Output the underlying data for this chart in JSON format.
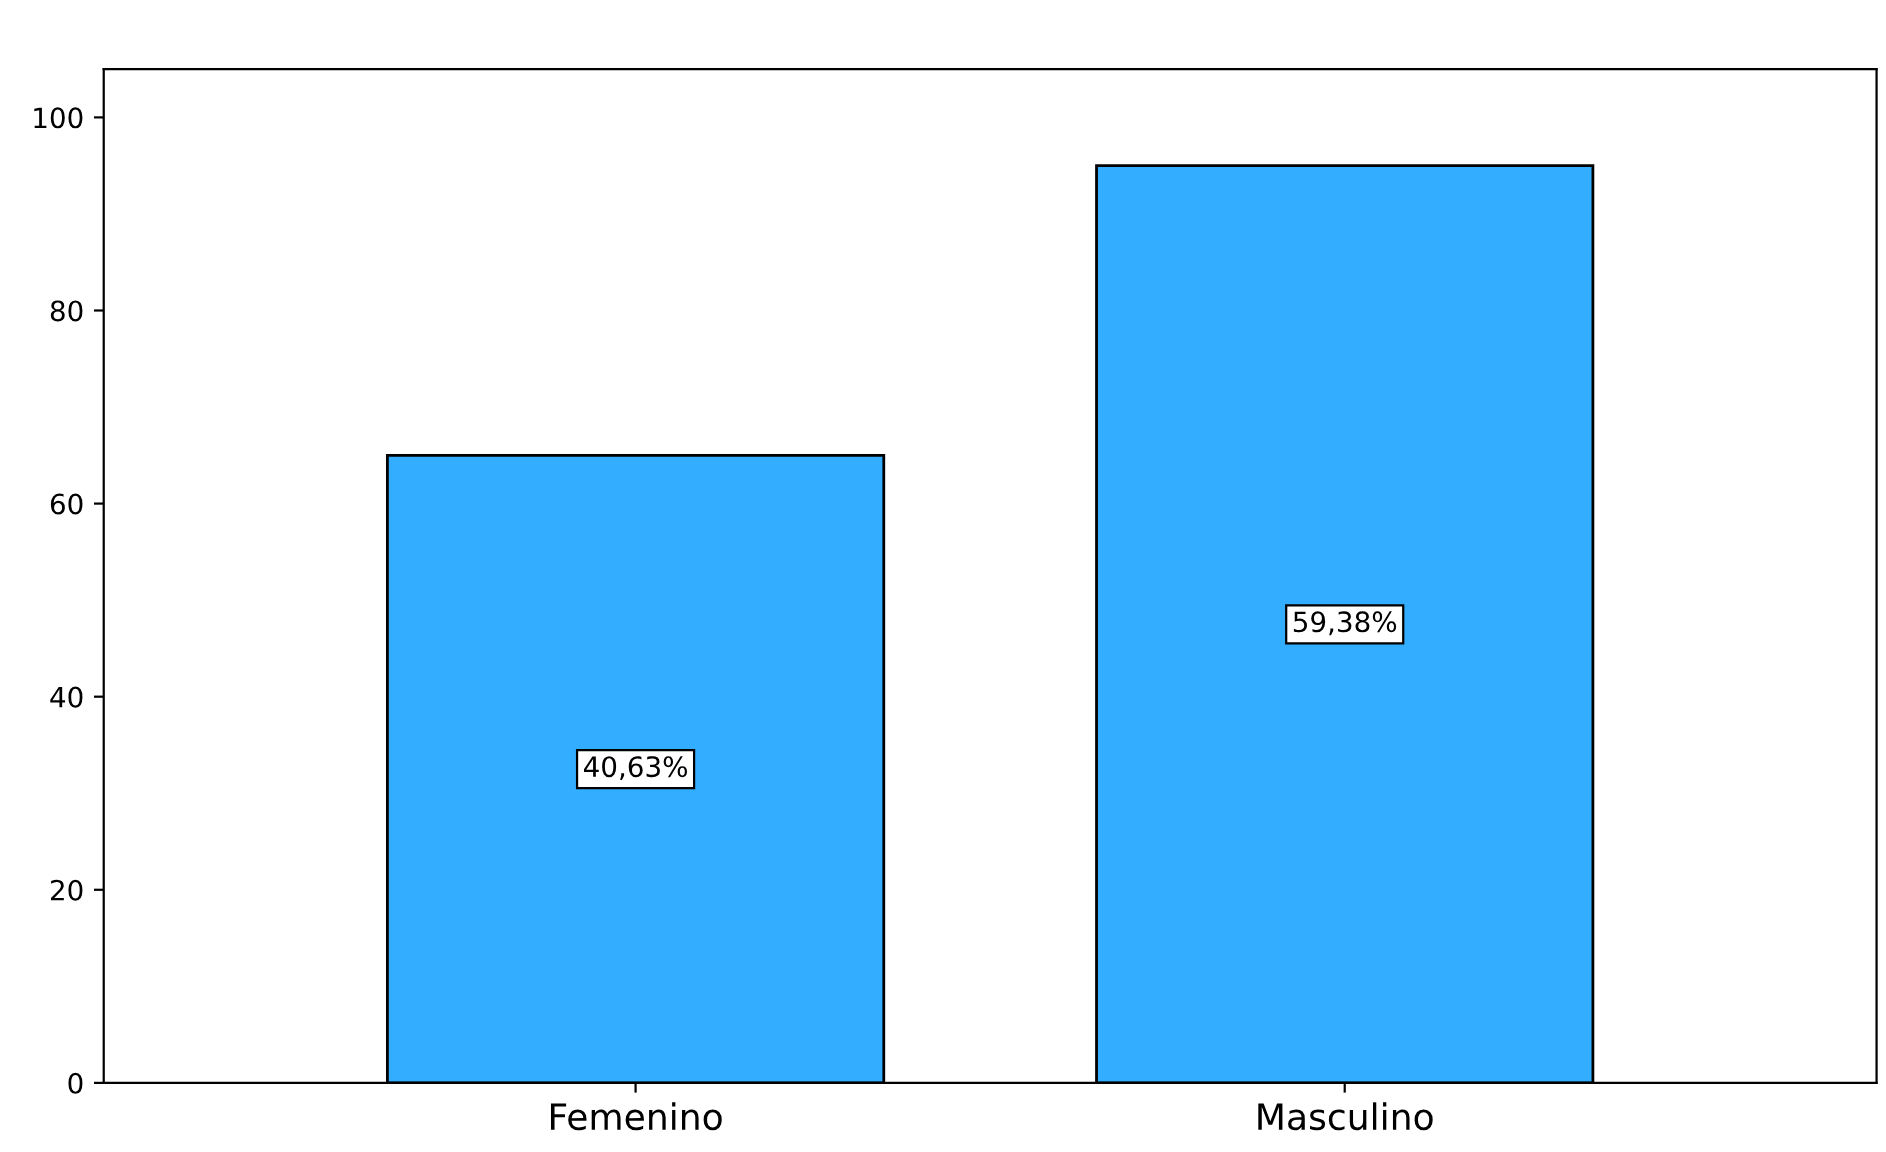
{
  "chart_data": {
    "type": "bar",
    "categories": [
      "Femenino",
      "Masculino"
    ],
    "values": [
      65,
      95
    ],
    "annotations": [
      "40,63%",
      "59,38%"
    ],
    "color": "#33adff",
    "ylim": [
      0,
      105
    ],
    "yticks": [
      0,
      20,
      40,
      60,
      80,
      100
    ],
    "grid": false,
    "legend": false
  }
}
